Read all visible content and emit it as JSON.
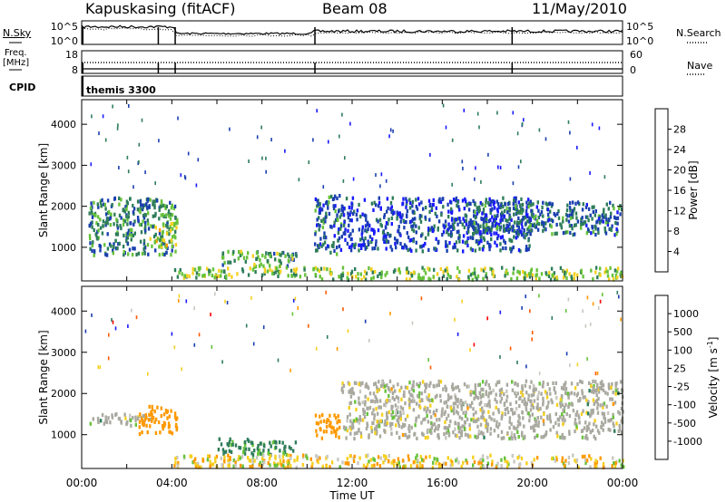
{
  "header": {
    "station": "Kapuskasing (fitACF)",
    "beam": "Beam 08",
    "date": "11/May/2010"
  },
  "noise_panel": {
    "left_label": "N.Sky",
    "right_label": "N.Search",
    "left_ticks": [
      "10^5",
      "10^0"
    ],
    "right_ticks": [
      "10^5",
      "10^0"
    ]
  },
  "freq_panel": {
    "left_label_line1": "Freq.",
    "left_label_line2": "[MHz]",
    "left_ticks": [
      "18",
      "8"
    ],
    "right_label": "Nave",
    "right_ticks": [
      "60",
      "0"
    ]
  },
  "cpid_panel": {
    "label": "CPID",
    "program": "themis 3300"
  },
  "colors": {
    "power_scale": [
      "#1a1aff",
      "#1a3fb0",
      "#2e7d5a",
      "#66c23a",
      "#f5d020",
      "#ff9900",
      "#ff5a00",
      "#ff0000"
    ],
    "velocity_scale": [
      "#ff0000",
      "#ff5a00",
      "#ff9900",
      "#f5d020",
      "#c8c8c0",
      "#66c23a",
      "#2e7d5a",
      "#1a3fb0",
      "#1a1aff"
    ],
    "ground_scatter": "#a9a9a0"
  },
  "chart_data": [
    {
      "type": "heatmap",
      "title": "",
      "xlabel": "",
      "ylabel": "Slant Range [km]",
      "xlim": [
        "00:00",
        "24:00"
      ],
      "ylim": [
        180,
        4600
      ],
      "ytick_labels": [
        "1000",
        "2000",
        "3000",
        "4000"
      ],
      "colorbar": {
        "label": "Power [dB]",
        "range": [
          0,
          32
        ],
        "tick_labels": [
          "4",
          "8",
          "12",
          "16",
          "20",
          "24",
          "28"
        ]
      },
      "series": [
        {
          "name": "",
          "values": [
            {
              "t0": 0.3,
              "t1": 4.2,
              "r0": 800,
              "r1": 2200,
              "value": 10
            },
            {
              "t0": 3.0,
              "t1": 4.2,
              "r0": 1000,
              "r1": 1600,
              "value": 16
            },
            {
              "t0": 4.0,
              "t1": 10.5,
              "r0": 250,
              "r1": 500,
              "value": 14
            },
            {
              "t0": 6.2,
              "t1": 9.5,
              "r0": 500,
              "r1": 900,
              "value": 12
            },
            {
              "t0": 10.3,
              "t1": 11.5,
              "r0": 800,
              "r1": 2300,
              "value": 8
            },
            {
              "t0": 10.5,
              "t1": 24.0,
              "r0": 200,
              "r1": 500,
              "value": 14
            },
            {
              "t0": 11.5,
              "t1": 20.0,
              "r0": 900,
              "r1": 2200,
              "value": 6
            },
            {
              "t0": 17.0,
              "t1": 24.0,
              "r0": 1300,
              "r1": 2100,
              "value": 8
            }
          ]
        }
      ]
    },
    {
      "type": "heatmap",
      "title": "",
      "xlabel": "Time UT",
      "ylabel": "Slant Range [km]",
      "xlim": [
        "00:00",
        "24:00"
      ],
      "ylim": [
        180,
        4600
      ],
      "ytick_labels": [
        "1000",
        "2000",
        "3000",
        "4000"
      ],
      "xtick_labels": [
        "00:00",
        "04:00",
        "08:00",
        "12:00",
        "16:00",
        "20:00",
        "00:00"
      ],
      "colorbar": {
        "label": "Velocity [m s^-1]",
        "range": [
          -1000,
          1000
        ],
        "tick_labels": [
          "1000",
          "500",
          "100",
          "25",
          "-25",
          "-100",
          "-500",
          "-1000"
        ]
      },
      "series": [
        {
          "name": "",
          "values": [
            {
              "t0": 0.3,
              "t1": 3.0,
              "r0": 1200,
              "r1": 1500,
              "value": 0
            },
            {
              "t0": 2.5,
              "t1": 4.2,
              "r0": 1000,
              "r1": 1700,
              "value": -300
            },
            {
              "t0": 6.0,
              "t1": 9.5,
              "r0": 500,
              "r1": 900,
              "value": 150
            },
            {
              "t0": 10.3,
              "t1": 11.5,
              "r0": 900,
              "r1": 1500,
              "value": -200
            },
            {
              "t0": 11.5,
              "t1": 24.0,
              "r0": 900,
              "r1": 2300,
              "value": 0
            },
            {
              "t0": 4.0,
              "t1": 24.0,
              "r0": 200,
              "r1": 500,
              "value": -50
            }
          ]
        }
      ]
    }
  ],
  "velocity_units": {
    "base": "Velocity [m s",
    "exponent": "-1",
    "close": "]"
  }
}
